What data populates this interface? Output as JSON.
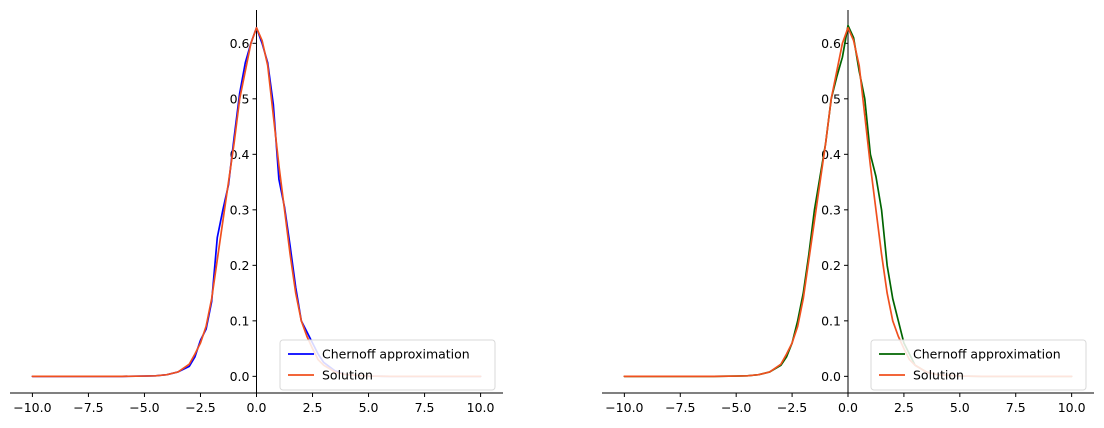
{
  "chart_data": [
    {
      "type": "line",
      "title": "",
      "xlabel": "",
      "ylabel": "",
      "xlim": [
        -11,
        11
      ],
      "ylim": [
        -0.03,
        0.66
      ],
      "x_ticks": [
        -10.0,
        -7.5,
        -5.0,
        -2.5,
        0.0,
        2.5,
        5.0,
        7.5,
        10.0
      ],
      "x_tick_labels": [
        "−10.0",
        "−7.5",
        "−5.0",
        "−2.5",
        "0.0",
        "2.5",
        "5.0",
        "7.5",
        "10.0"
      ],
      "y_ticks": [
        0.0,
        0.1,
        0.2,
        0.3,
        0.4,
        0.5,
        0.6
      ],
      "y_tick_labels": [
        "0.0",
        "0.1",
        "0.2",
        "0.3",
        "0.4",
        "0.5",
        "0.6"
      ],
      "grid": false,
      "legend_position": "lower-right",
      "series": [
        {
          "name": "Chernoff approximation",
          "color": "#0000ff",
          "x": [
            -10,
            -8,
            -6,
            -5,
            -4.5,
            -4,
            -3.5,
            -3,
            -2.75,
            -2.5,
            -2.25,
            -2,
            -1.75,
            -1.5,
            -1.25,
            -1,
            -0.75,
            -0.5,
            -0.25,
            0,
            0.25,
            0.5,
            0.75,
            1,
            1.25,
            1.5,
            1.75,
            2,
            2.25,
            2.5,
            2.75,
            3,
            3.5,
            4,
            5,
            6,
            8,
            10
          ],
          "y": [
            0.0,
            0.0,
            0.0,
            0.0005,
            0.001,
            0.003,
            0.008,
            0.018,
            0.035,
            0.065,
            0.085,
            0.135,
            0.25,
            0.3,
            0.345,
            0.43,
            0.51,
            0.565,
            0.6,
            0.628,
            0.6,
            0.565,
            0.49,
            0.355,
            0.305,
            0.235,
            0.16,
            0.1,
            0.08,
            0.06,
            0.04,
            0.025,
            0.01,
            0.003,
            0.0005,
            0.0,
            0.0,
            0.0
          ]
        },
        {
          "name": "Solution",
          "color": "#f0501e",
          "x": [
            -10,
            -8,
            -6,
            -5,
            -4.5,
            -4,
            -3.5,
            -3,
            -2.75,
            -2.5,
            -2.25,
            -2,
            -1.75,
            -1.5,
            -1.25,
            -1,
            -0.75,
            -0.5,
            -0.25,
            0,
            0.25,
            0.5,
            0.75,
            1,
            1.25,
            1.5,
            1.75,
            2,
            2.25,
            2.5,
            2.75,
            3,
            3.5,
            4,
            5,
            6,
            8,
            10
          ],
          "y": [
            0.0,
            0.0,
            0.0,
            0.0005,
            0.001,
            0.003,
            0.008,
            0.022,
            0.04,
            0.06,
            0.09,
            0.14,
            0.21,
            0.28,
            0.35,
            0.42,
            0.5,
            0.55,
            0.6,
            0.628,
            0.605,
            0.56,
            0.47,
            0.38,
            0.3,
            0.22,
            0.15,
            0.1,
            0.072,
            0.05,
            0.03,
            0.02,
            0.008,
            0.003,
            0.0005,
            0.0,
            0.0,
            0.0
          ]
        }
      ]
    },
    {
      "type": "line",
      "title": "",
      "xlabel": "",
      "ylabel": "",
      "xlim": [
        -11,
        11
      ],
      "ylim": [
        -0.03,
        0.66
      ],
      "x_ticks": [
        -10.0,
        -7.5,
        -5.0,
        -2.5,
        0.0,
        2.5,
        5.0,
        7.5,
        10.0
      ],
      "x_tick_labels": [
        "−10.0",
        "−7.5",
        "−5.0",
        "−2.5",
        "0.0",
        "2.5",
        "5.0",
        "7.5",
        "10.0"
      ],
      "y_ticks": [
        0.0,
        0.1,
        0.2,
        0.3,
        0.4,
        0.5,
        0.6
      ],
      "y_tick_labels": [
        "0.0",
        "0.1",
        "0.2",
        "0.3",
        "0.4",
        "0.5",
        "0.6"
      ],
      "grid": false,
      "legend_position": "lower-right",
      "series": [
        {
          "name": "Chernoff approximation",
          "color": "#006400",
          "x": [
            -10,
            -8,
            -6,
            -5,
            -4.5,
            -4,
            -3.5,
            -3,
            -2.75,
            -2.5,
            -2.25,
            -2,
            -1.75,
            -1.5,
            -1.25,
            -1,
            -0.75,
            -0.5,
            -0.25,
            0,
            0.25,
            0.5,
            0.75,
            1,
            1.25,
            1.5,
            1.75,
            2,
            2.25,
            2.5,
            2.75,
            3,
            3.5,
            4,
            5,
            6,
            8,
            10
          ],
          "y": [
            0.0,
            0.0,
            0.0,
            0.0005,
            0.001,
            0.003,
            0.008,
            0.02,
            0.035,
            0.06,
            0.1,
            0.15,
            0.22,
            0.3,
            0.36,
            0.42,
            0.5,
            0.54,
            0.575,
            0.632,
            0.61,
            0.55,
            0.5,
            0.4,
            0.36,
            0.3,
            0.2,
            0.14,
            0.1,
            0.06,
            0.04,
            0.02,
            0.008,
            0.003,
            0.0005,
            0.0,
            0.0,
            0.0
          ]
        },
        {
          "name": "Solution",
          "color": "#f0501e",
          "x": [
            -10,
            -8,
            -6,
            -5,
            -4.5,
            -4,
            -3.5,
            -3,
            -2.75,
            -2.5,
            -2.25,
            -2,
            -1.75,
            -1.5,
            -1.25,
            -1,
            -0.75,
            -0.5,
            -0.25,
            0,
            0.25,
            0.5,
            0.75,
            1,
            1.25,
            1.5,
            1.75,
            2,
            2.25,
            2.5,
            2.75,
            3,
            3.5,
            4,
            5,
            6,
            8,
            10
          ],
          "y": [
            0.0,
            0.0,
            0.0,
            0.0005,
            0.001,
            0.003,
            0.008,
            0.022,
            0.04,
            0.06,
            0.09,
            0.14,
            0.21,
            0.28,
            0.35,
            0.42,
            0.5,
            0.55,
            0.6,
            0.628,
            0.605,
            0.56,
            0.47,
            0.38,
            0.3,
            0.22,
            0.15,
            0.1,
            0.072,
            0.05,
            0.03,
            0.02,
            0.008,
            0.003,
            0.0005,
            0.0,
            0.0,
            0.0
          ]
        }
      ]
    }
  ]
}
